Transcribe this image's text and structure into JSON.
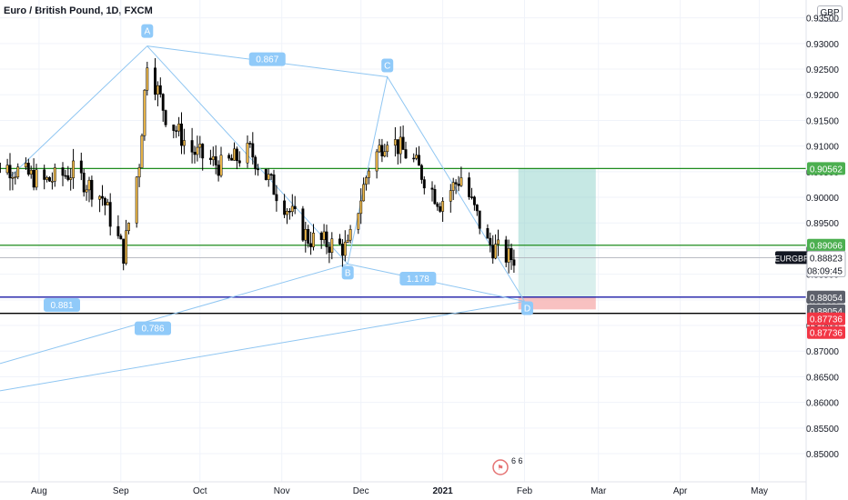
{
  "header": {
    "title": "Euro / British Pound, 1D, FXCM",
    "currency": "GBP"
  },
  "price_axis": {
    "labels": [
      "0.93500",
      "0.93000",
      "0.92500",
      "0.92000",
      "0.91500",
      "0.91000",
      "0.90500",
      "0.90000",
      "0.89500",
      "0.89000",
      "0.88500",
      "0.88000",
      "0.87500",
      "0.87000",
      "0.86500",
      "0.86000",
      "0.85500",
      "0.85000"
    ]
  },
  "time_axis": {
    "labels": [
      "Aug",
      "Sep",
      "Oct",
      "Nov",
      "Dec",
      "2021",
      "Feb",
      "Mar",
      "Apr",
      "May"
    ]
  },
  "price_tags": {
    "target": "0.90562",
    "entry": "0.89066",
    "symbol": "EURGBP",
    "last": "0.88823",
    "countdown": "08:09:45",
    "stop_level_1": "0.88054",
    "stop_level_2": "0.88054",
    "loss_1": "0.87736",
    "loss_2": "0.87736"
  },
  "pattern": {
    "points": [
      {
        "label": "A",
        "date": "2020-09-11",
        "price": 0.9295
      },
      {
        "label": "B",
        "date": "2020-11-26",
        "price": 0.887
      },
      {
        "label": "C",
        "date": "2020-12-11",
        "price": 0.9235
      },
      {
        "label": "D",
        "date": "2021-02-01",
        "price": 0.8797
      }
    ],
    "ratios": [
      {
        "text": "0.867",
        "between": "A-C"
      },
      {
        "text": "1.178",
        "between": "B-D"
      },
      {
        "text": "0.881",
        "between": "X-B"
      },
      {
        "text": "0.786",
        "between": "X-D"
      }
    ]
  },
  "events": {
    "badge_text": "6 6"
  },
  "colors": {
    "up_candle": "#f0ba4a",
    "down_candle": "#000000",
    "pattern_line": "#8fc6f2",
    "label_fill": "#90caf9",
    "green_line": "#1e8c1e",
    "blue_line": "#1a1aa6",
    "profit_zone": "#80cbc4",
    "loss_zone": "#f5a6a6",
    "price_tag_dark": "#5d606b",
    "loss_tag": "#f23645",
    "target_tag": "#4caf50"
  },
  "chart_data": {
    "type": "candlestick",
    "symbol": "EURGBP",
    "timeframe": "1D",
    "source": "FXCM",
    "ylim": [
      0.85,
      0.939
    ],
    "x_range": [
      "2020-07-18",
      "2021-05-20"
    ],
    "grid": true,
    "key_points": [
      {
        "date": "2020-07-20",
        "close": 0.906
      },
      {
        "date": "2020-08-03",
        "close": 0.903
      },
      {
        "date": "2020-08-14",
        "close": 0.905
      },
      {
        "date": "2020-08-25",
        "close": 0.9
      },
      {
        "date": "2020-09-02",
        "close": 0.889
      },
      {
        "date": "2020-09-08",
        "close": 0.907
      },
      {
        "date": "2020-09-11",
        "close": 0.927
      },
      {
        "date": "2020-09-18",
        "close": 0.916
      },
      {
        "date": "2020-09-28",
        "close": 0.909
      },
      {
        "date": "2020-10-09",
        "close": 0.906
      },
      {
        "date": "2020-10-20",
        "close": 0.909
      },
      {
        "date": "2020-10-30",
        "close": 0.901
      },
      {
        "date": "2020-11-11",
        "close": 0.892
      },
      {
        "date": "2020-11-26",
        "close": 0.89
      },
      {
        "date": "2020-12-04",
        "close": 0.906
      },
      {
        "date": "2020-12-11",
        "close": 0.912
      },
      {
        "date": "2020-12-21",
        "close": 0.907
      },
      {
        "date": "2020-12-31",
        "close": 0.899
      },
      {
        "date": "2021-01-08",
        "close": 0.904
      },
      {
        "date": "2021-01-18",
        "close": 0.891
      },
      {
        "date": "2021-01-26",
        "close": 0.8882
      }
    ],
    "levels": [
      {
        "name": "target",
        "value": 0.90562
      },
      {
        "name": "entry",
        "value": 0.89066
      },
      {
        "name": "last",
        "value": 0.88823
      },
      {
        "name": "stop",
        "value": 0.88054
      },
      {
        "name": "loss",
        "value": 0.87736
      }
    ],
    "position": {
      "direction": "long",
      "entry": 0.89066,
      "target": 0.90562,
      "stop": 0.88054,
      "start": "2021-01-20",
      "end": "2021-02-28"
    }
  }
}
